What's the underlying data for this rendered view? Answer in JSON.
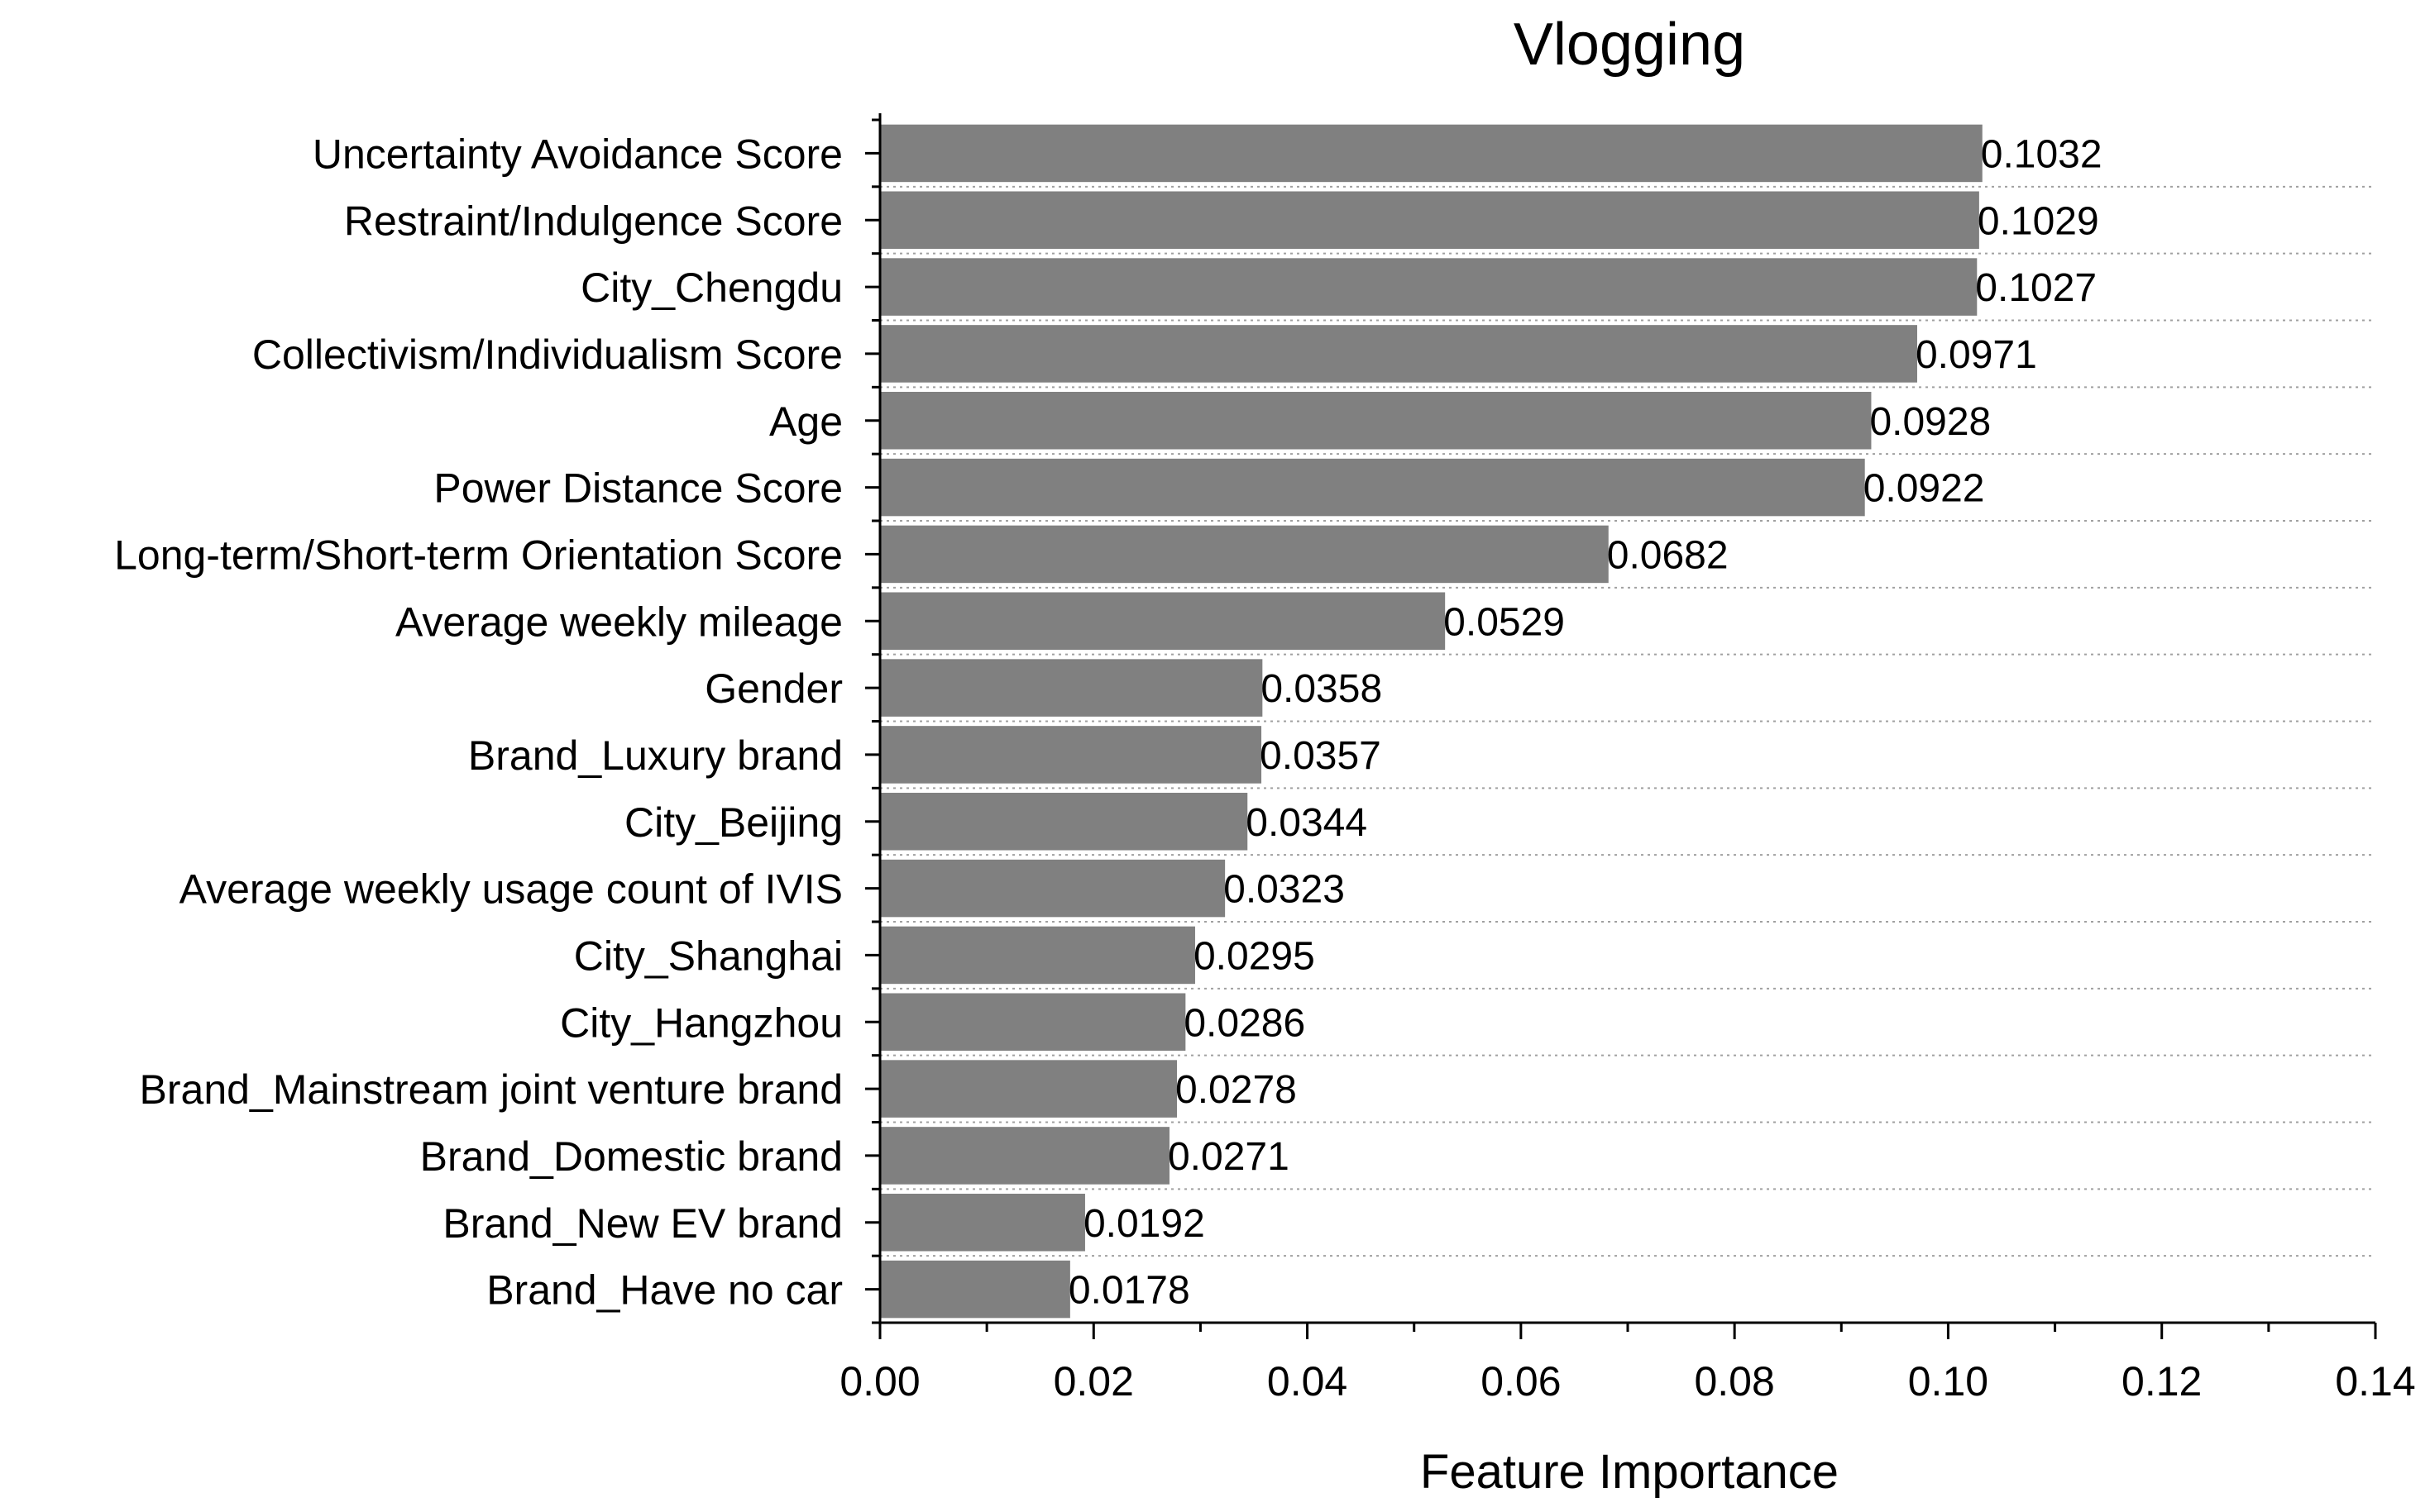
{
  "chart_data": {
    "type": "bar",
    "orientation": "horizontal",
    "title": "Vlogging",
    "xlabel": "Feature Importance",
    "ylabel": "",
    "xlim": [
      0,
      0.14
    ],
    "xticks": [
      "0.00",
      "0.02",
      "0.04",
      "0.06",
      "0.08",
      "0.10",
      "0.12",
      "0.14"
    ],
    "grid": "horizontal dotted",
    "bar_color": "#808080",
    "categories": [
      "Uncertainty Avoidance Score",
      "Restraint/Indulgence Score",
      "City_Chengdu",
      "Collectivism/Individualism Score",
      "Age",
      "Power Distance Score",
      "Long-term/Short-term Orientation Score",
      "Average weekly mileage",
      "Gender",
      "Brand_Luxury brand",
      "City_Beijing",
      "Average weekly usage count of IVIS",
      "City_Shanghai",
      "City_Hangzhou",
      "Brand_Mainstream joint venture brand",
      "Brand_Domestic brand",
      "Brand_New EV brand",
      "Brand_Have no car"
    ],
    "values": [
      0.1032,
      0.1029,
      0.1027,
      0.0971,
      0.0928,
      0.0922,
      0.0682,
      0.0529,
      0.0358,
      0.0357,
      0.0344,
      0.0323,
      0.0295,
      0.0286,
      0.0278,
      0.0271,
      0.0192,
      0.0178
    ],
    "value_labels": [
      "0.1032",
      "0.1029",
      "0.1027",
      "0.0971",
      "0.0928",
      "0.0922",
      "0.0682",
      "0.0529",
      "0.0358",
      "0.0357",
      "0.0344",
      "0.0323",
      "0.0295",
      "0.0286",
      "0.0278",
      "0.0271",
      "0.0192",
      "0.0178"
    ]
  }
}
